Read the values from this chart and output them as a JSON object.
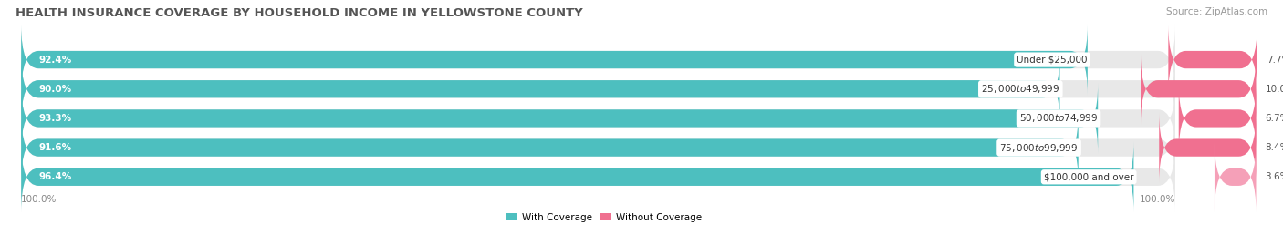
{
  "title": "HEALTH INSURANCE COVERAGE BY HOUSEHOLD INCOME IN YELLOWSTONE COUNTY",
  "source": "Source: ZipAtlas.com",
  "categories": [
    "Under $25,000",
    "$25,000 to $49,999",
    "$50,000 to $74,999",
    "$75,000 to $99,999",
    "$100,000 and over"
  ],
  "with_coverage": [
    92.4,
    90.0,
    93.3,
    91.6,
    96.4
  ],
  "without_coverage": [
    7.7,
    10.0,
    6.7,
    8.4,
    3.6
  ],
  "color_coverage": "#4DBFBF",
  "color_no_coverage": "#F07090",
  "color_no_coverage_last": "#F5A0B8",
  "bar_background": "#E8E8E8",
  "figsize": [
    14.06,
    2.69
  ],
  "dpi": 100,
  "bg_color": "#FFFFFF",
  "legend_coverage": "With Coverage",
  "legend_no_coverage": "Without Coverage",
  "title_fontsize": 9.5,
  "label_fontsize": 7.5,
  "tick_fontsize": 7.5,
  "source_fontsize": 7.5,
  "bar_label_fontsize": 7.5
}
